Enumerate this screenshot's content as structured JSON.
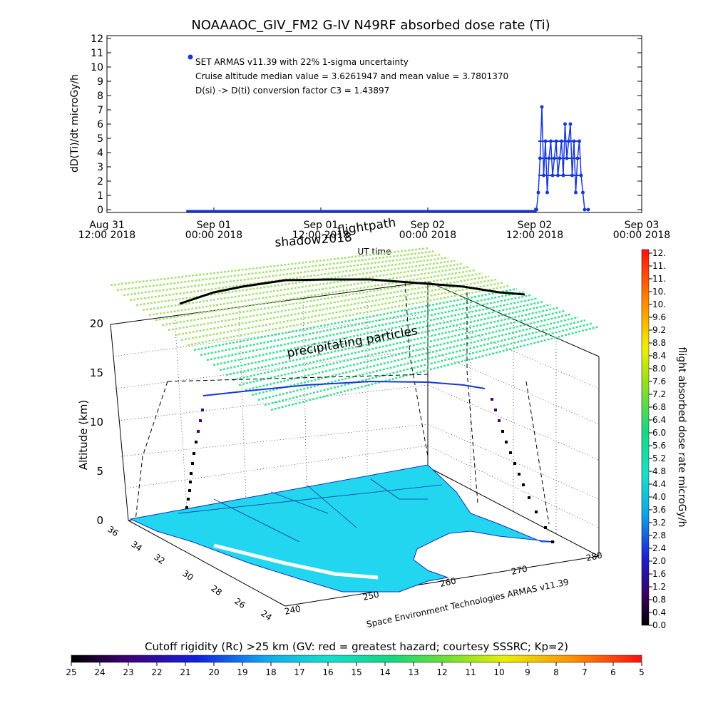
{
  "title": "NOAAAOC_GIV_FM2 G-IV   N49RF  absorbed dose rate (Ti)",
  "top_plot": {
    "ylabel": "dD(Ti)/dt microGy/h",
    "xlabel": "UT time",
    "legend_lines": [
      "SET ARMAS v11.39 with 22% 1-sigma uncertainty",
      "Cruise altitude median value = 3.6261947 and mean value = 3.7801370",
      "D(si) -> D(ti) conversion factor C3 = 1.43897"
    ],
    "legend_marker_color": "#1838d8"
  },
  "labels_3d": {
    "shadow": "shadow2018",
    "flightpath": "flightpath",
    "precip": "precipitating particles",
    "altitude_label": "Altitude (km)",
    "credit": "Space Environment Technologies ARMAS v11.39",
    "altitude_ticks": [
      "0",
      "5",
      "10",
      "15",
      "20"
    ],
    "lat_ticks": [
      "36",
      "34",
      "32",
      "30",
      "28",
      "26",
      "24"
    ],
    "lon_ticks": [
      "240",
      "250",
      "260",
      "270",
      "280"
    ]
  },
  "right_colorbar": {
    "label": "flight absorbed dose rate microGy/h",
    "ticks": [
      "12.",
      "11.",
      "11.",
      "10.",
      "10.",
      "9.6",
      "9.2",
      "8.8",
      "8.4",
      "8.0",
      "7.6",
      "7.2",
      "6.8",
      "6.4",
      "6.0",
      "5.6",
      "5.2",
      "4.8",
      "4.4",
      "4.0",
      "3.6",
      "3.2",
      "2.8",
      "2.4",
      "2.0",
      "1.6",
      "1.2",
      "0.8",
      "0.4",
      "0.0"
    ]
  },
  "bottom_colorbar": {
    "label": "Cutoff rigidity (Rc) >25 km (GV: red = greatest hazard; courtesy SSSRC; Kp=2)",
    "ticks": [
      "25",
      "24",
      "23",
      "22",
      "21",
      "20",
      "19",
      "18",
      "17",
      "16",
      "15",
      "14",
      "13",
      "12",
      "11",
      "10",
      "9",
      "8",
      "7",
      "6",
      "5"
    ]
  },
  "chart_data": {
    "type": "line",
    "title": "NOAAAOC_GIV_FM2 G-IV   N49RF  absorbed dose rate (Ti)",
    "xlabel": "UT time",
    "ylabel": "dD(Ti)/dt microGy/h",
    "x_ticks": [
      "Aug 31 12:00 2018",
      "Sep 01 00:00 2018",
      "Sep 01 12:00 2018",
      "Sep 02 00:00 2018",
      "Sep 02 12:00 2018",
      "Sep 03 00:00 2018"
    ],
    "xlim_hours_from_aug31_1200": [
      0,
      60
    ],
    "ylim": [
      0,
      12
    ],
    "y_ticks": [
      0,
      1,
      2,
      3,
      4,
      5,
      6,
      7,
      8,
      9,
      10,
      11,
      12
    ],
    "grid": false,
    "series": [
      {
        "name": "SET ARMAS v11.39 with 22% 1-sigma uncertainty",
        "color": "#1838d8",
        "x_hours": [
          8.9,
          48.2,
          48.4,
          48.6,
          48.8,
          49.0,
          49.2,
          49.4,
          49.6,
          49.8,
          50.0,
          50.2,
          50.4,
          50.6,
          50.8,
          51.0,
          51.2,
          51.4,
          51.6,
          51.8,
          52.0,
          52.2,
          52.4,
          52.6,
          52.8,
          53.0,
          53.2,
          53.4,
          53.6,
          54.0
        ],
        "values": [
          0.0,
          0.0,
          1.2,
          3.6,
          7.2,
          2.4,
          4.8,
          1.2,
          3.6,
          4.8,
          2.4,
          3.6,
          4.8,
          2.4,
          3.6,
          4.8,
          2.4,
          6.0,
          3.6,
          4.8,
          6.0,
          2.4,
          4.8,
          1.2,
          3.6,
          4.8,
          2.4,
          1.2,
          0.0,
          0.0
        ]
      }
    ]
  }
}
